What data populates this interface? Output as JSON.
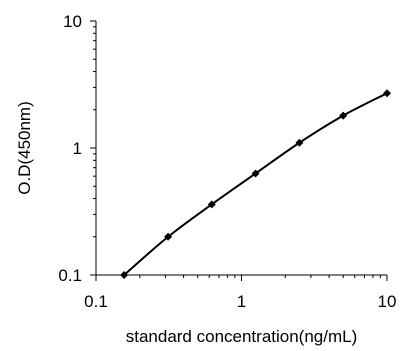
{
  "chart_data": {
    "type": "line",
    "title": "",
    "xlabel": "standard concentration(ng/mL)",
    "ylabel": "O.D(450nm)",
    "x_scale": "log",
    "y_scale": "log",
    "xlim": [
      0.1,
      10
    ],
    "ylim": [
      0.1,
      10
    ],
    "x_ticks": [
      {
        "value": 0.1,
        "label": "0.1"
      },
      {
        "value": 1,
        "label": "1"
      },
      {
        "value": 10,
        "label": "10"
      }
    ],
    "y_ticks": [
      {
        "value": 0.1,
        "label": "0.1"
      },
      {
        "value": 1,
        "label": "1"
      },
      {
        "value": 10,
        "label": "10"
      }
    ],
    "grid": false,
    "legend": "none",
    "marker": "diamond",
    "colors": {
      "line": "#000000",
      "marker": "#000000",
      "axis": "#000000"
    },
    "series": [
      {
        "x": [
          0.156,
          0.313,
          0.625,
          1.25,
          2.5,
          5,
          10
        ],
        "y": [
          0.1,
          0.2,
          0.36,
          0.63,
          1.1,
          1.8,
          2.7
        ]
      }
    ]
  }
}
